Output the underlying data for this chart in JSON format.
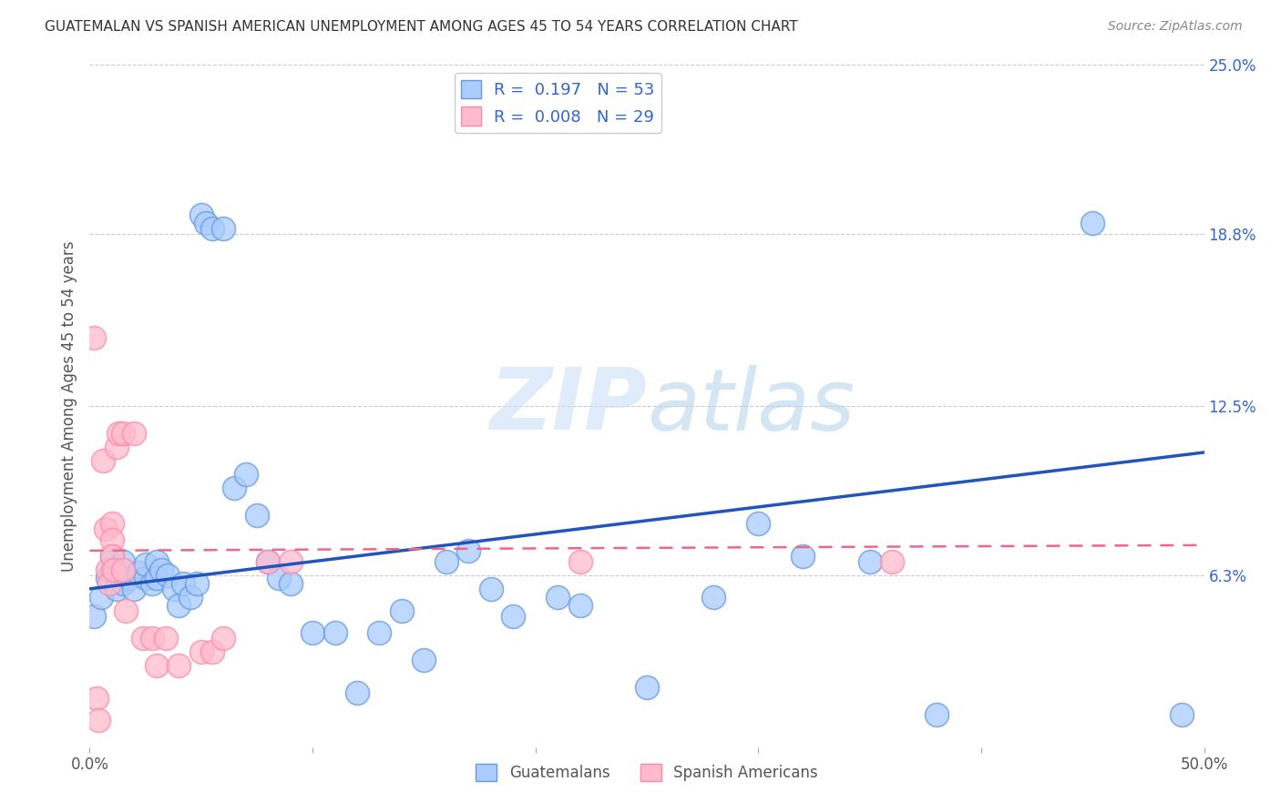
{
  "title": "GUATEMALAN VS SPANISH AMERICAN UNEMPLOYMENT AMONG AGES 45 TO 54 YEARS CORRELATION CHART",
  "source": "Source: ZipAtlas.com",
  "ylabel": "Unemployment Among Ages 45 to 54 years",
  "xlim": [
    0.0,
    0.5
  ],
  "ylim": [
    0.0,
    0.25
  ],
  "ytick_labels_right": [
    "25.0%",
    "18.8%",
    "12.5%",
    "6.3%",
    ""
  ],
  "ytick_vals_right": [
    0.25,
    0.188,
    0.125,
    0.063,
    0.0
  ],
  "blue_scatter_face": "#aaccff",
  "blue_scatter_edge": "#6699dd",
  "pink_scatter_face": "#ffbbcc",
  "pink_scatter_edge": "#ff88aa",
  "line_blue": "#2255bb",
  "line_pink": "#ee6688",
  "text_blue": "#3366cc",
  "watermark_color": "#cce0f5",
  "legend_R_blue": "0.197",
  "legend_N_blue": "53",
  "legend_R_pink": "0.008",
  "legend_N_pink": "29",
  "blue_points_x": [
    0.002,
    0.005,
    0.008,
    0.01,
    0.01,
    0.012,
    0.015,
    0.015,
    0.018,
    0.02,
    0.022,
    0.025,
    0.025,
    0.028,
    0.03,
    0.03,
    0.032,
    0.035,
    0.038,
    0.04,
    0.042,
    0.045,
    0.048,
    0.05,
    0.052,
    0.055,
    0.06,
    0.065,
    0.07,
    0.075,
    0.08,
    0.085,
    0.09,
    0.1,
    0.11,
    0.12,
    0.13,
    0.14,
    0.15,
    0.16,
    0.17,
    0.18,
    0.19,
    0.21,
    0.22,
    0.25,
    0.28,
    0.3,
    0.32,
    0.35,
    0.38,
    0.45,
    0.49
  ],
  "blue_points_y": [
    0.048,
    0.055,
    0.062,
    0.065,
    0.07,
    0.058,
    0.06,
    0.068,
    0.062,
    0.058,
    0.064,
    0.062,
    0.067,
    0.06,
    0.068,
    0.062,
    0.065,
    0.063,
    0.058,
    0.052,
    0.06,
    0.055,
    0.06,
    0.195,
    0.192,
    0.19,
    0.19,
    0.095,
    0.1,
    0.085,
    0.068,
    0.062,
    0.06,
    0.042,
    0.042,
    0.02,
    0.042,
    0.05,
    0.032,
    0.068,
    0.072,
    0.058,
    0.048,
    0.055,
    0.052,
    0.022,
    0.055,
    0.082,
    0.07,
    0.068,
    0.012,
    0.192,
    0.012
  ],
  "pink_points_x": [
    0.002,
    0.003,
    0.004,
    0.006,
    0.007,
    0.008,
    0.009,
    0.01,
    0.01,
    0.01,
    0.011,
    0.012,
    0.013,
    0.015,
    0.015,
    0.016,
    0.02,
    0.024,
    0.028,
    0.03,
    0.034,
    0.04,
    0.05,
    0.055,
    0.06,
    0.08,
    0.09,
    0.22,
    0.36
  ],
  "pink_points_y": [
    0.15,
    0.018,
    0.01,
    0.105,
    0.08,
    0.065,
    0.06,
    0.082,
    0.076,
    0.07,
    0.065,
    0.11,
    0.115,
    0.115,
    0.065,
    0.05,
    0.115,
    0.04,
    0.04,
    0.03,
    0.04,
    0.03,
    0.035,
    0.035,
    0.04,
    0.068,
    0.068,
    0.068,
    0.068
  ],
  "blue_trend_y_start": 0.058,
  "blue_trend_y_end": 0.108,
  "pink_trend_y_start": 0.072,
  "pink_trend_y_end": 0.074,
  "background_color": "#ffffff",
  "grid_color": "#cccccc",
  "axis_label_color": "#555555"
}
